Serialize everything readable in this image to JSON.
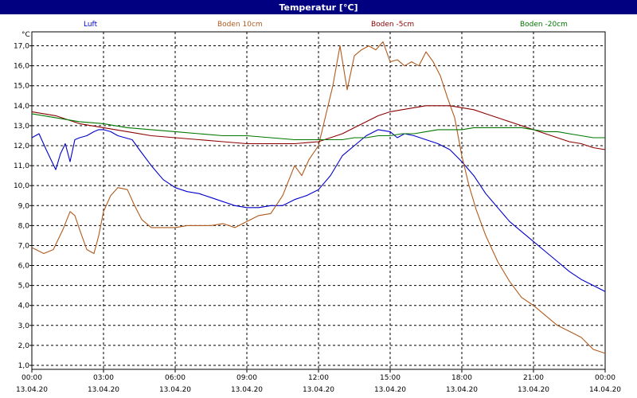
{
  "window": {
    "title": "Temperatur [°C]"
  },
  "chart_data": {
    "type": "line",
    "title": "Temperatur [°C]",
    "ylabel": "°C",
    "xlabel": "",
    "ylim": [
      0.8,
      17.7
    ],
    "xlim": [
      0,
      24
    ],
    "grid": true,
    "legend_placement": "top",
    "y_ticks": [
      "1,0",
      "2,0",
      "3,0",
      "4,0",
      "5,0",
      "6,0",
      "7,0",
      "8,0",
      "9,0",
      "10,0",
      "11,0",
      "12,0",
      "13,0",
      "14,0",
      "15,0",
      "16,0",
      "17,0"
    ],
    "x_ticks": [
      {
        "time": "00:00",
        "date": "13.04.20"
      },
      {
        "time": "03:00",
        "date": "13.04.20"
      },
      {
        "time": "06:00",
        "date": "13.04.20"
      },
      {
        "time": "09:00",
        "date": "13.04.20"
      },
      {
        "time": "12:00",
        "date": "13.04.20"
      },
      {
        "time": "15:00",
        "date": "13.04.20"
      },
      {
        "time": "18:00",
        "date": "13.04.20"
      },
      {
        "time": "21:00",
        "date": "13.04.20"
      },
      {
        "time": "00:00",
        "date": "14.04.20"
      }
    ],
    "series": [
      {
        "name": "Luft",
        "color": "#0000cc",
        "x": [
          0,
          0.3,
          0.6,
          1,
          1.2,
          1.4,
          1.6,
          1.8,
          2,
          2.3,
          2.6,
          2.8,
          3,
          3.3,
          3.6,
          3.9,
          4.2,
          4.5,
          5,
          5.5,
          6,
          6.5,
          7,
          7.5,
          8,
          8.5,
          9,
          9.5,
          10,
          10.5,
          11,
          11.5,
          12,
          12.5,
          13,
          13.5,
          14,
          14.5,
          15,
          15.3,
          15.6,
          16,
          16.5,
          17,
          17.5,
          18,
          18.5,
          19,
          19.5,
          20,
          20.5,
          21,
          21.5,
          22,
          22.5,
          23,
          23.5,
          24
        ],
        "values": [
          12.4,
          12.6,
          11.8,
          10.8,
          11.6,
          12.1,
          11.2,
          12.3,
          12.4,
          12.5,
          12.7,
          12.8,
          12.8,
          12.7,
          12.5,
          12.4,
          12.3,
          11.8,
          11.0,
          10.3,
          9.9,
          9.7,
          9.6,
          9.4,
          9.2,
          9.0,
          8.9,
          8.9,
          9.0,
          9.0,
          9.3,
          9.5,
          9.8,
          10.5,
          11.5,
          12.0,
          12.5,
          12.8,
          12.7,
          12.4,
          12.6,
          12.5,
          12.3,
          12.1,
          11.8,
          11.2,
          10.5,
          9.6,
          8.9,
          8.2,
          7.7,
          7.2,
          6.7,
          6.2,
          5.7,
          5.3,
          5.0,
          4.7
        ]
      },
      {
        "name": "Boden 10cm",
        "color": "#b05a1c",
        "x": [
          0,
          0.5,
          0.9,
          1.3,
          1.6,
          1.8,
          2,
          2.3,
          2.6,
          2.8,
          3,
          3.3,
          3.6,
          4,
          4.3,
          4.6,
          5,
          5.5,
          6,
          6.5,
          7,
          7.5,
          8,
          8.5,
          9,
          9.5,
          10,
          10.5,
          11,
          11.3,
          11.6,
          12,
          12.3,
          12.6,
          12.9,
          13.2,
          13.5,
          13.8,
          14.1,
          14.4,
          14.7,
          15,
          15.3,
          15.6,
          15.9,
          16.2,
          16.5,
          16.8,
          17.1,
          17.4,
          17.7,
          18,
          18.3,
          18.6,
          19,
          19.5,
          20,
          20.5,
          21,
          21.5,
          22,
          22.5,
          23,
          23.5,
          24
        ],
        "values": [
          6.9,
          6.6,
          6.8,
          7.8,
          8.7,
          8.5,
          7.8,
          6.8,
          6.6,
          7.5,
          8.7,
          9.5,
          9.9,
          9.8,
          9.0,
          8.3,
          7.9,
          7.9,
          7.9,
          8.0,
          8.0,
          8.0,
          8.1,
          7.9,
          8.2,
          8.5,
          8.6,
          9.5,
          11.0,
          10.5,
          11.3,
          12.0,
          13.5,
          15.0,
          17.0,
          14.8,
          16.5,
          16.8,
          17.0,
          16.8,
          17.2,
          16.2,
          16.3,
          16.0,
          16.2,
          16.0,
          16.7,
          16.2,
          15.5,
          14.4,
          13.4,
          11.5,
          10.0,
          8.8,
          7.5,
          6.2,
          5.2,
          4.4,
          4.0,
          3.5,
          3.0,
          2.7,
          2.4,
          1.8,
          1.6
        ]
      },
      {
        "name": "Boden -5cm",
        "color": "#8b0000",
        "x": [
          0,
          1,
          2,
          3,
          4,
          5,
          6,
          7,
          8,
          9,
          10,
          11,
          12,
          12.5,
          13,
          13.5,
          14,
          14.5,
          15,
          15.5,
          16,
          16.5,
          17,
          17.5,
          18,
          18.5,
          19,
          19.5,
          20,
          20.5,
          21,
          21.5,
          22,
          22.5,
          23,
          23.5,
          24
        ],
        "values": [
          13.7,
          13.5,
          13.1,
          12.9,
          12.7,
          12.5,
          12.4,
          12.3,
          12.2,
          12.1,
          12.1,
          12.1,
          12.2,
          12.4,
          12.6,
          12.9,
          13.2,
          13.5,
          13.7,
          13.8,
          13.9,
          14.0,
          14.0,
          14.0,
          13.9,
          13.8,
          13.6,
          13.4,
          13.2,
          13.0,
          12.8,
          12.6,
          12.4,
          12.2,
          12.1,
          11.9,
          11.8
        ]
      },
      {
        "name": "Boden -20cm",
        "color": "#007700",
        "x": [
          0,
          1,
          2,
          3,
          4,
          5,
          6,
          7,
          8,
          9,
          10,
          11,
          12,
          12.5,
          13,
          13.5,
          14,
          14.5,
          15,
          15.5,
          16,
          16.5,
          17,
          17.5,
          18,
          18.5,
          19,
          19.5,
          20,
          20.5,
          21,
          21.5,
          22,
          22.5,
          23,
          23.5,
          24
        ],
        "values": [
          13.6,
          13.4,
          13.2,
          13.1,
          12.9,
          12.8,
          12.7,
          12.6,
          12.5,
          12.5,
          12.4,
          12.3,
          12.3,
          12.3,
          12.3,
          12.4,
          12.4,
          12.5,
          12.5,
          12.6,
          12.6,
          12.7,
          12.8,
          12.8,
          12.8,
          12.9,
          12.9,
          12.9,
          12.9,
          12.9,
          12.8,
          12.7,
          12.7,
          12.6,
          12.5,
          12.4,
          12.4
        ]
      }
    ]
  }
}
